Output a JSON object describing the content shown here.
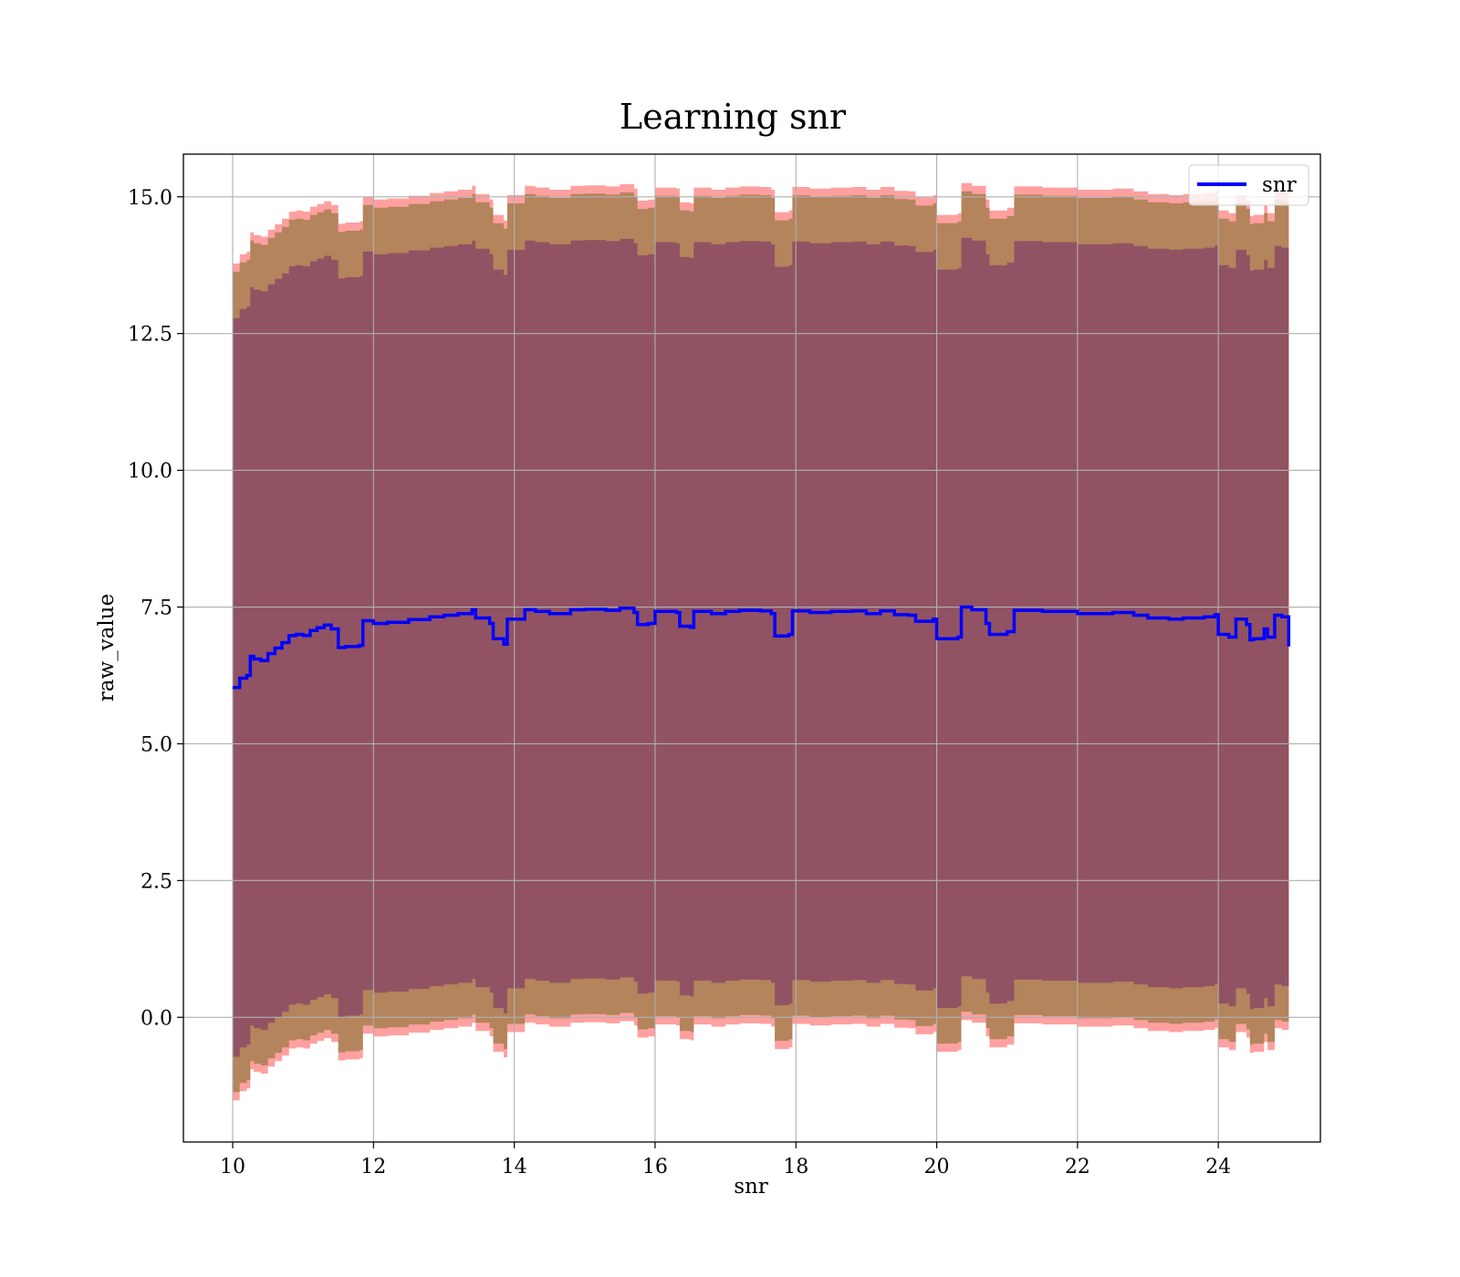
{
  "chart_data": {
    "type": "line",
    "title": "Learning snr",
    "xlabel": "snr",
    "ylabel": "raw_value",
    "xlim": [
      9.3,
      25.45
    ],
    "ylim": [
      -2.28,
      15.78
    ],
    "xticks": [
      10,
      12,
      14,
      16,
      18,
      20,
      22,
      24
    ],
    "yticks": [
      0.0,
      2.5,
      5.0,
      7.5,
      10.0,
      12.5,
      15.0
    ],
    "xtick_labels": [
      "10",
      "12",
      "14",
      "16",
      "18",
      "20",
      "22",
      "24"
    ],
    "ytick_labels": [
      "0.0",
      "2.5",
      "5.0",
      "7.5",
      "10.0",
      "12.5",
      "15.0"
    ],
    "grid": true,
    "legend_position": "top-right",
    "colors": {
      "line": "#0000ff",
      "outer_band": "#ff8080",
      "middle_band": "#b4845c",
      "inner_band": "#8b4a64",
      "grid": "#b0b0b0"
    },
    "series": [
      {
        "name": "snr",
        "x": [
          10.0,
          10.1,
          10.2,
          10.25,
          10.3,
          10.4,
          10.5,
          10.6,
          10.7,
          10.8,
          10.9,
          11.0,
          11.1,
          11.2,
          11.3,
          11.4,
          11.5,
          11.6,
          11.8,
          11.85,
          12.0,
          12.2,
          12.5,
          12.8,
          13.0,
          13.2,
          13.4,
          13.45,
          13.65,
          13.7,
          13.85,
          13.9,
          14.15,
          14.3,
          14.5,
          14.8,
          15.0,
          15.3,
          15.5,
          15.7,
          15.75,
          15.9,
          16.0,
          16.3,
          16.35,
          16.5,
          16.55,
          16.8,
          17.0,
          17.2,
          17.5,
          17.65,
          17.7,
          17.9,
          17.95,
          18.2,
          18.5,
          18.8,
          19.0,
          19.2,
          19.4,
          19.6,
          19.7,
          19.95,
          20.0,
          20.3,
          20.35,
          20.5,
          20.7,
          20.75,
          21.0,
          21.1,
          21.5,
          22.0,
          22.5,
          22.8,
          23.0,
          23.3,
          23.5,
          23.8,
          23.95,
          24.0,
          24.15,
          24.25,
          24.4,
          24.45,
          24.5,
          24.65,
          24.7,
          24.8,
          24.9,
          25.0
        ],
        "values": [
          6.03,
          6.2,
          6.25,
          6.6,
          6.55,
          6.52,
          6.65,
          6.75,
          6.85,
          6.98,
          7.0,
          6.98,
          7.07,
          7.12,
          7.17,
          7.1,
          6.76,
          6.78,
          6.8,
          7.25,
          7.2,
          7.22,
          7.27,
          7.32,
          7.35,
          7.38,
          7.45,
          7.3,
          7.2,
          6.92,
          6.82,
          7.28,
          7.45,
          7.42,
          7.38,
          7.45,
          7.46,
          7.44,
          7.48,
          7.4,
          7.18,
          7.2,
          7.42,
          7.4,
          7.15,
          7.13,
          7.42,
          7.38,
          7.42,
          7.44,
          7.43,
          7.38,
          6.97,
          7.0,
          7.43,
          7.4,
          7.42,
          7.43,
          7.38,
          7.43,
          7.36,
          7.35,
          7.24,
          7.28,
          6.92,
          6.95,
          7.5,
          7.45,
          7.2,
          7.0,
          7.05,
          7.44,
          7.42,
          7.38,
          7.4,
          7.35,
          7.3,
          7.28,
          7.3,
          7.32,
          7.36,
          7.0,
          6.95,
          7.28,
          7.18,
          6.9,
          6.92,
          7.1,
          6.95,
          7.35,
          7.32,
          6.78
        ]
      }
    ],
    "bands": {
      "outer_upper_offset": 7.75,
      "middle_upper_offset": 7.6,
      "inner_upper_offset": 6.75,
      "inner_lower_offset": 6.75,
      "middle_lower_offset": 7.4,
      "outer_lower_offset": 7.55
    }
  }
}
